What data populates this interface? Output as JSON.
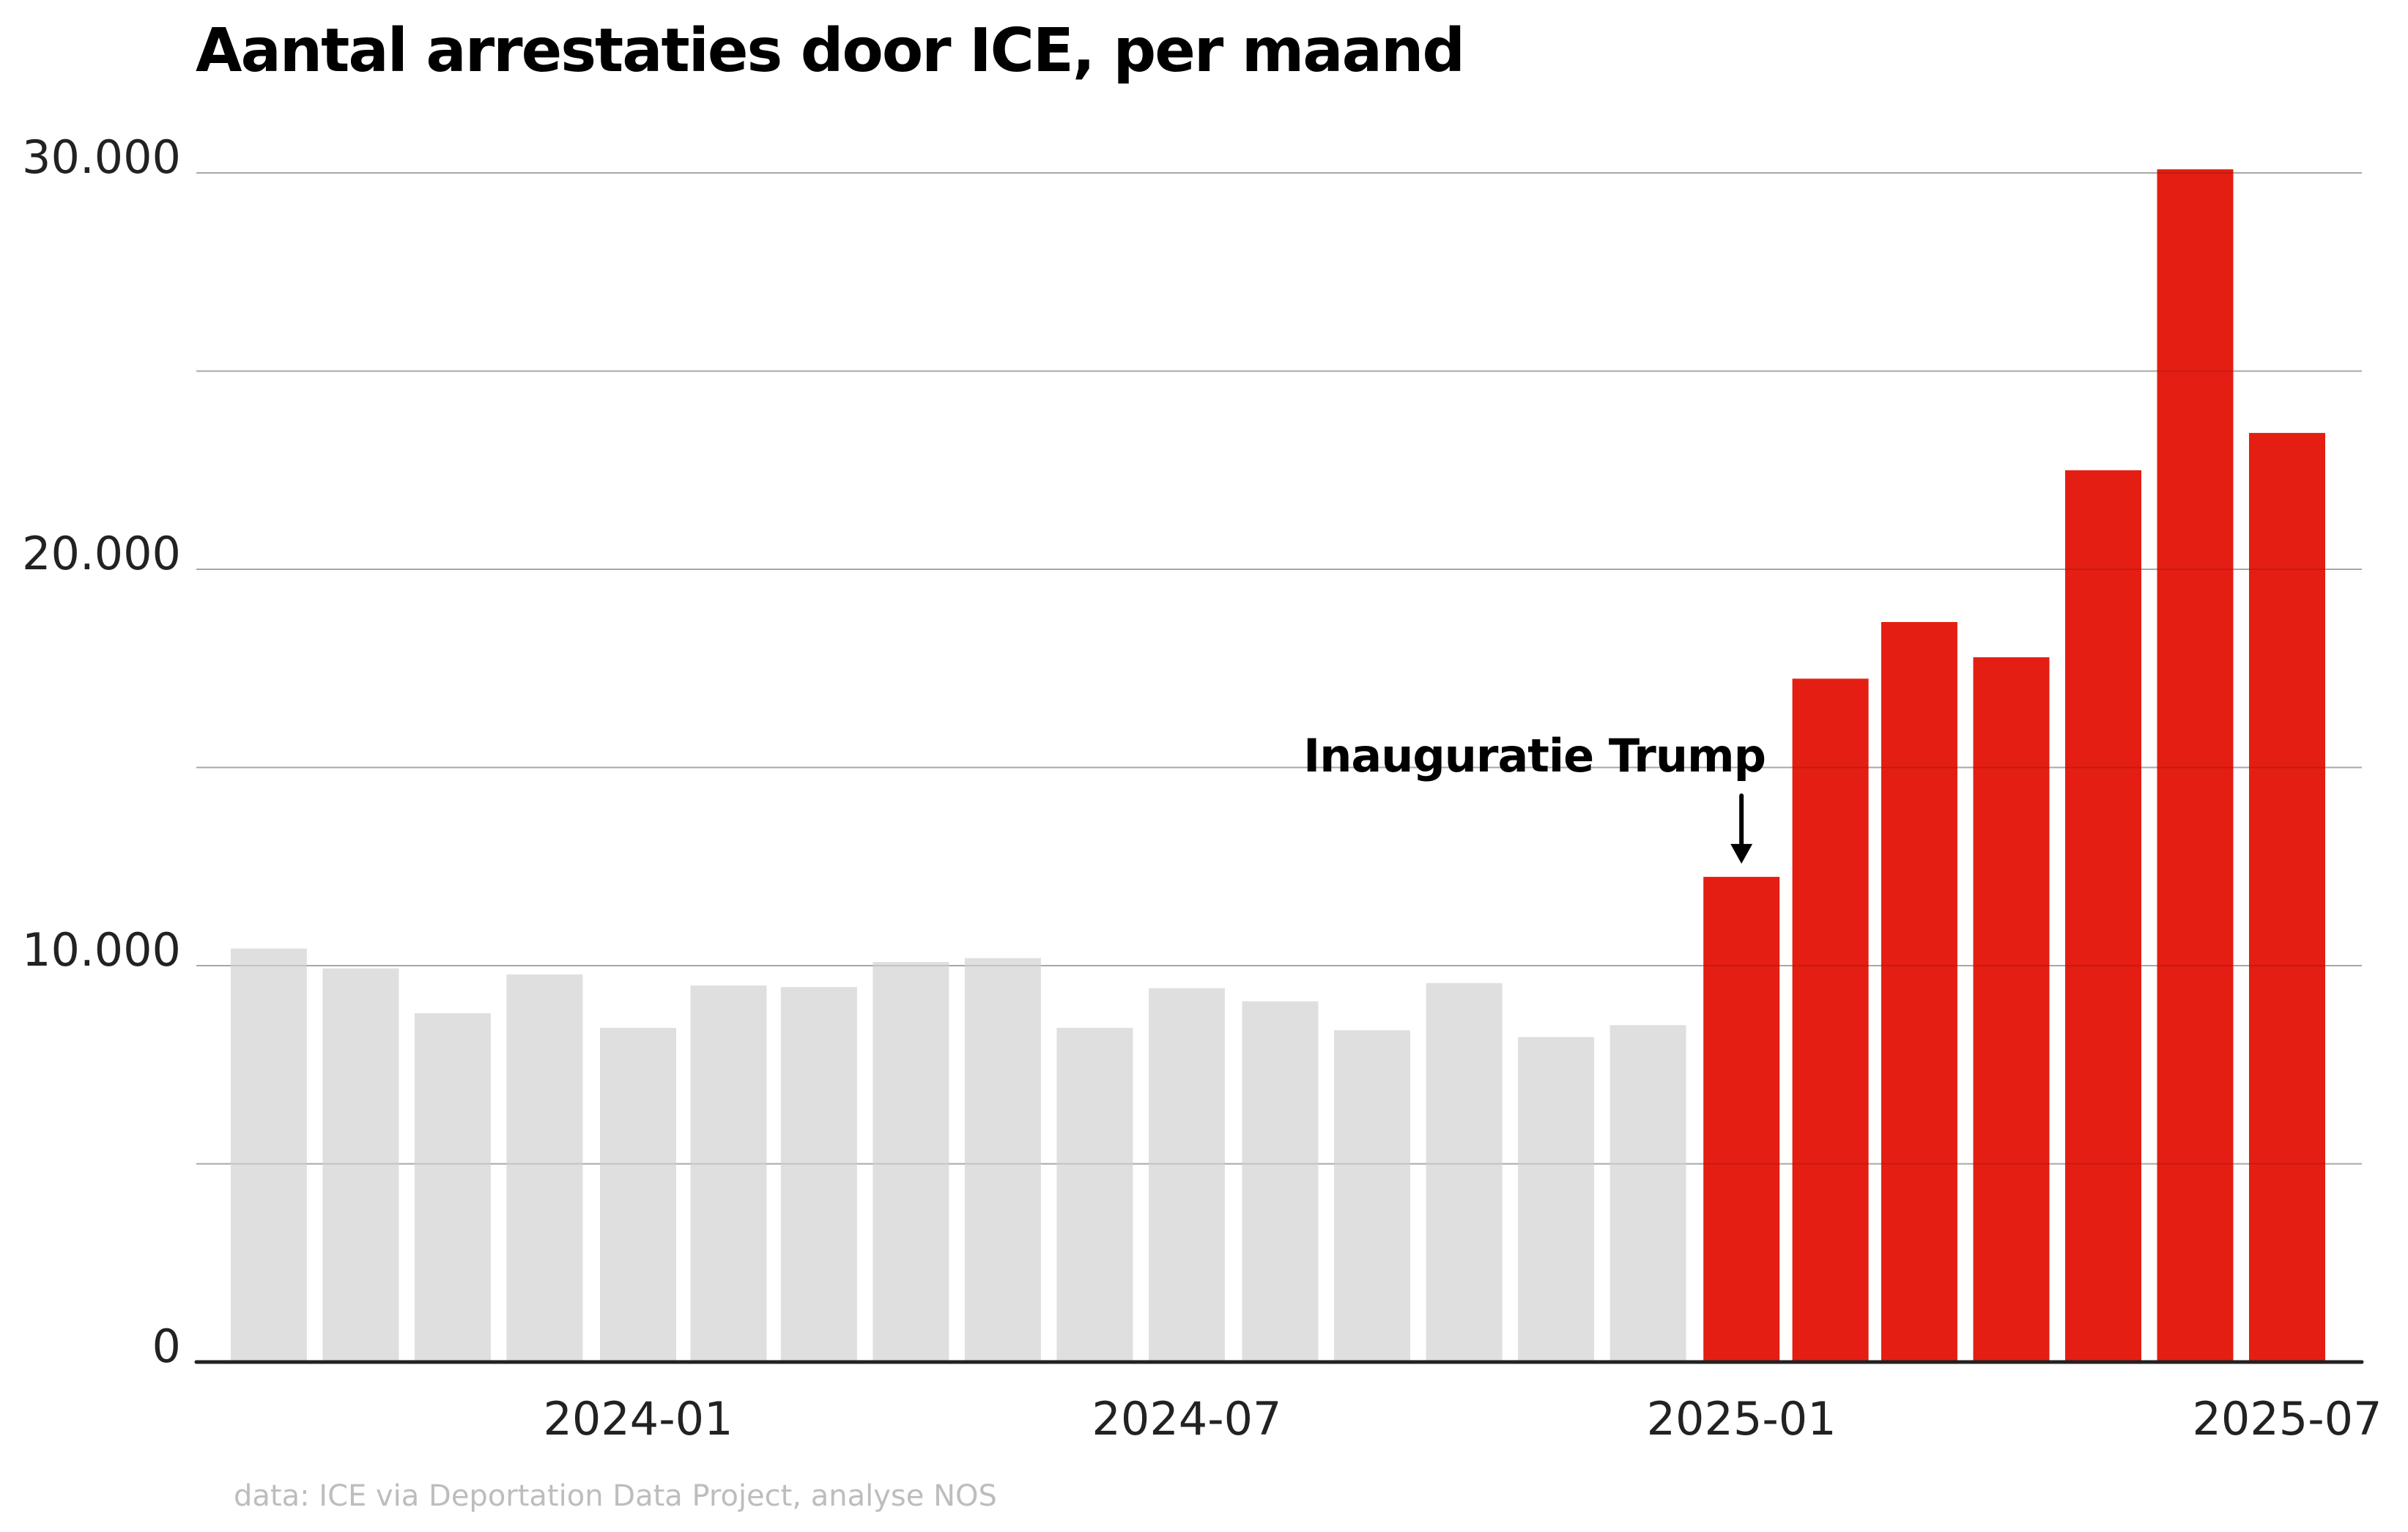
{
  "chart_data": {
    "type": "bar",
    "title": "Aantal arrestaties door ICE, per maand",
    "xlabel": "",
    "ylabel": "",
    "ylim": [
      0,
      30000
    ],
    "grid": true,
    "yticks": [
      0,
      5000,
      10000,
      15000,
      20000,
      25000,
      30000
    ],
    "ytick_labels": [
      {
        "value": 0,
        "label": "0"
      },
      {
        "value": 10000,
        "label": "10.000"
      },
      {
        "value": 20000,
        "label": "20.000"
      },
      {
        "value": 30000,
        "label": "30.000"
      }
    ],
    "xtick_labels": [
      {
        "month": "2024-01",
        "label": "2024-01"
      },
      {
        "month": "2024-07",
        "label": "2024-07"
      },
      {
        "month": "2025-01",
        "label": "2025-01"
      },
      {
        "month": "2025-07",
        "label": "2025-07"
      }
    ],
    "categories": [
      "2023-09",
      "2023-10",
      "2023-11",
      "2023-12",
      "2024-01",
      "2024-02",
      "2024-03",
      "2024-04",
      "2024-05",
      "2024-06",
      "2024-07",
      "2024-08",
      "2024-09",
      "2024-10",
      "2024-11",
      "2024-12",
      "2025-01",
      "2025-02",
      "2025-03",
      "2025-04",
      "2025-05",
      "2025-06",
      "2025-07"
    ],
    "values": [
      10430,
      9930,
      8800,
      9780,
      8430,
      9500,
      9460,
      10090,
      10190,
      8430,
      9430,
      9100,
      8370,
      9560,
      8200,
      8500,
      12240,
      17240,
      18670,
      17780,
      22500,
      30090,
      23440
    ],
    "highlight_from": "2025-01",
    "colors": {
      "before": "#dfdfdf",
      "after": "#e41e13"
    },
    "annotation": {
      "text": "Inauguratie Trump",
      "target": "2025-01",
      "arrow": "down-arrow"
    },
    "source": "data: ICE via Deportation Data Project, analyse NOS"
  }
}
